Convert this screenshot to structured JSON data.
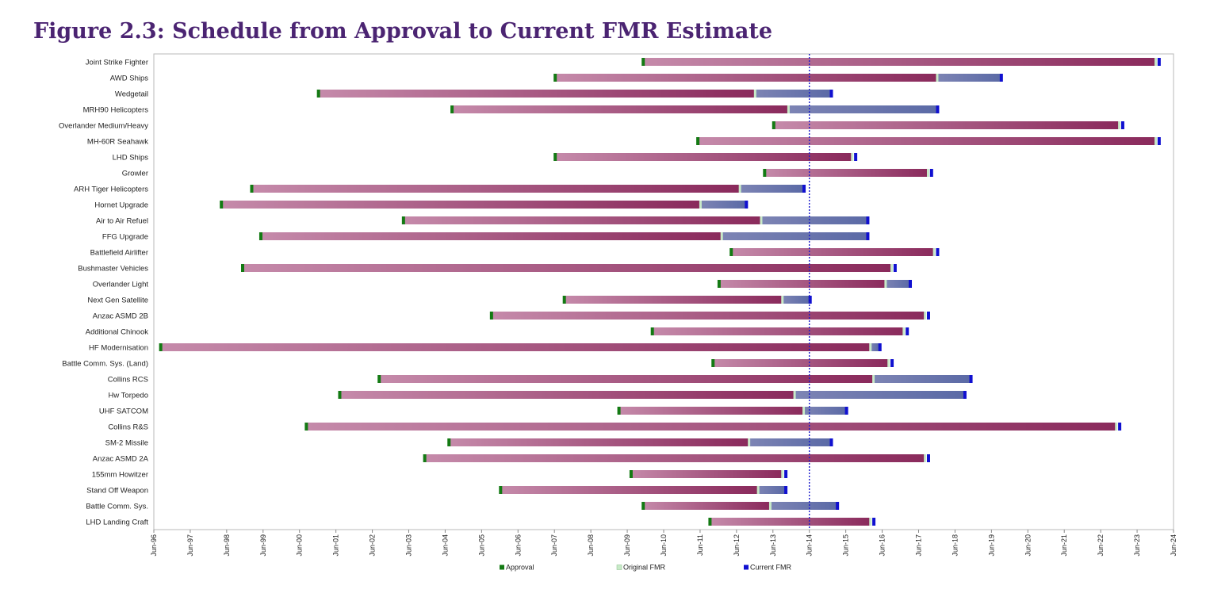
{
  "title": "Figure 2.3: Schedule from Approval to Current FMR Estimate",
  "chart_data": {
    "type": "gantt",
    "title": "Figure 2.3: Schedule from Approval to Current FMR Estimate",
    "x_axis": {
      "min": "1996-06",
      "max": "2024-06",
      "ticks": [
        "Jun-96",
        "Jun-97",
        "Jun-98",
        "Jun-99",
        "Jun-00",
        "Jun-01",
        "Jun-02",
        "Jun-03",
        "Jun-04",
        "Jun-05",
        "Jun-06",
        "Jun-07",
        "Jun-08",
        "Jun-09",
        "Jun-10",
        "Jun-11",
        "Jun-12",
        "Jun-13",
        "Jun-14",
        "Jun-15",
        "Jun-16",
        "Jun-17",
        "Jun-18",
        "Jun-19",
        "Jun-20",
        "Jun-21",
        "Jun-22",
        "Jun-23",
        "Jun-24"
      ]
    },
    "reference_line": "2014-06",
    "legend": [
      {
        "label": "Approval",
        "color": "#137a13"
      },
      {
        "label": "Original FMR",
        "color": "#c8eac8"
      },
      {
        "label": "Current FMR",
        "color": "#1010d0"
      }
    ],
    "colors": {
      "original_segment_light": "#c58aaa",
      "original_segment_dark": "#8a2a5c",
      "slip_segment_light": "#7d84b4",
      "slip_segment_dark": "#5b6aa6",
      "reference_line": "#1a1acc"
    },
    "projects": [
      {
        "name": "Joint Strike Fighter",
        "approval": "2009-11",
        "original_fmr": "2023-12",
        "current_fmr": "2024-01"
      },
      {
        "name": "AWD Ships",
        "approval": "2007-06",
        "original_fmr": "2017-12",
        "current_fmr": "2019-09"
      },
      {
        "name": "Wedgetail",
        "approval": "2000-12",
        "original_fmr": "2012-12",
        "current_fmr": "2015-01"
      },
      {
        "name": "MRH90 Helicopters",
        "approval": "2004-08",
        "original_fmr": "2013-11",
        "current_fmr": "2017-12"
      },
      {
        "name": "Overlander Medium/Heavy",
        "approval": "2013-06",
        "original_fmr": "2022-12",
        "current_fmr": "2023-01"
      },
      {
        "name": "MH-60R Seahawk",
        "approval": "2011-05",
        "original_fmr": "2023-12",
        "current_fmr": "2024-01"
      },
      {
        "name": "LHD Ships",
        "approval": "2007-06",
        "original_fmr": "2015-08",
        "current_fmr": "2015-09"
      },
      {
        "name": "Growler",
        "approval": "2013-03",
        "original_fmr": "2017-09",
        "current_fmr": "2017-10"
      },
      {
        "name": "ARH Tiger Helicopters",
        "approval": "1999-02",
        "original_fmr": "2012-07",
        "current_fmr": "2014-04"
      },
      {
        "name": "Hornet Upgrade",
        "approval": "1998-04",
        "original_fmr": "2011-06",
        "current_fmr": "2012-09"
      },
      {
        "name": "Air to Air Refuel",
        "approval": "2003-04",
        "original_fmr": "2013-02",
        "current_fmr": "2016-01"
      },
      {
        "name": "FFG Upgrade",
        "approval": "1999-05",
        "original_fmr": "2012-01",
        "current_fmr": "2016-01"
      },
      {
        "name": "Battlefield Airlifter",
        "approval": "2012-04",
        "original_fmr": "2017-11",
        "current_fmr": "2017-12"
      },
      {
        "name": "Bushmaster Vehicles",
        "approval": "1998-11",
        "original_fmr": "2016-09",
        "current_fmr": "2016-10"
      },
      {
        "name": "Overlander Light",
        "approval": "2011-12",
        "original_fmr": "2016-07",
        "current_fmr": "2017-03"
      },
      {
        "name": "Next Gen Satellite",
        "approval": "2007-09",
        "original_fmr": "2013-09",
        "current_fmr": "2014-06"
      },
      {
        "name": "Anzac ASMD 2B",
        "approval": "2005-09",
        "original_fmr": "2017-08",
        "current_fmr": "2017-09"
      },
      {
        "name": "Additional Chinook",
        "approval": "2010-02",
        "original_fmr": "2017-01",
        "current_fmr": "2017-02"
      },
      {
        "name": "HF Modernisation",
        "approval": "1996-08",
        "original_fmr": "2016-02",
        "current_fmr": "2016-05"
      },
      {
        "name": "Battle Comm. Sys. (Land)",
        "approval": "2011-10",
        "original_fmr": "2016-08",
        "current_fmr": "2016-09"
      },
      {
        "name": "Collins RCS",
        "approval": "2002-08",
        "original_fmr": "2016-03",
        "current_fmr": "2018-11"
      },
      {
        "name": "Hw Torpedo",
        "approval": "2001-07",
        "original_fmr": "2014-01",
        "current_fmr": "2018-09"
      },
      {
        "name": "UHF SATCOM",
        "approval": "2009-03",
        "original_fmr": "2014-04",
        "current_fmr": "2015-06"
      },
      {
        "name": "Collins R&S",
        "approval": "2000-08",
        "original_fmr": "2022-11",
        "current_fmr": "2022-12"
      },
      {
        "name": "SM-2 Missile",
        "approval": "2004-07",
        "original_fmr": "2012-10",
        "current_fmr": "2015-01"
      },
      {
        "name": "Anzac ASMD 2A",
        "approval": "2003-11",
        "original_fmr": "2017-08",
        "current_fmr": "2017-09"
      },
      {
        "name": "155mm Howitzer",
        "approval": "2009-07",
        "original_fmr": "2013-09",
        "current_fmr": "2013-10"
      },
      {
        "name": "Stand Off Weapon",
        "approval": "2005-12",
        "original_fmr": "2013-01",
        "current_fmr": "2013-10"
      },
      {
        "name": "Battle Comm. Sys.",
        "approval": "2009-11",
        "original_fmr": "2013-05",
        "current_fmr": "2015-03"
      },
      {
        "name": "LHD Landing Craft",
        "approval": "2011-09",
        "original_fmr": "2016-02",
        "current_fmr": "2016-03"
      }
    ]
  }
}
